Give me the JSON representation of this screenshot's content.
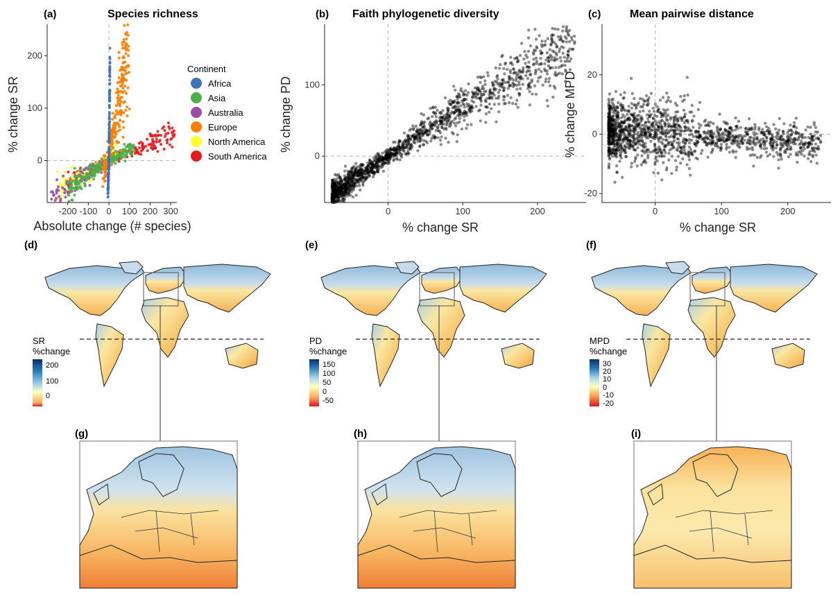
{
  "colors": {
    "Africa": "#3d75b8",
    "Asia": "#4daf4a",
    "Australia": "#984ea3",
    "Europe": "#ff7f00",
    "North America": "#ffff33",
    "South America": "#e41a1c",
    "points_dark": "#000000",
    "land_base": "#f7e9a6",
    "ocean": "#ffffff",
    "gridline": "#b5b5b5",
    "divergent_low": "#d7191c",
    "divergent_mid": "#ffffbf",
    "divergent_high": "#08306b"
  },
  "panels": {
    "a": {
      "letter": "(a)",
      "title": "Species richness"
    },
    "b": {
      "letter": "(b)",
      "title": "Faith phylogenetic diversity"
    },
    "c": {
      "letter": "(c)",
      "title": "Mean pairwise distance"
    },
    "d": {
      "letter": "(d)",
      "cbar_title_1": "SR",
      "cbar_title_2": "%change",
      "cbar_ticks": [
        "200",
        "100",
        "0"
      ]
    },
    "e": {
      "letter": "(e)",
      "cbar_title_1": "PD",
      "cbar_title_2": "%change",
      "cbar_ticks": [
        "150",
        "100",
        "50",
        "0",
        "-50"
      ]
    },
    "f": {
      "letter": "(f)",
      "cbar_title_1": "MPD",
      "cbar_title_2": "%change",
      "cbar_ticks": [
        "30",
        "20",
        "10",
        "0",
        "-10",
        "-20"
      ]
    },
    "g": {
      "letter": "(g)"
    },
    "h": {
      "letter": "(h)"
    },
    "i": {
      "letter": "(i)"
    }
  },
  "chart_data": [
    {
      "type": "scatter",
      "panel": "a",
      "title": "Species richness",
      "xlabel": "Absolute change (# species)",
      "ylabel": "% change SR",
      "xlim": [
        -300,
        330
      ],
      "ylim": [
        -80,
        260
      ],
      "xticks": [
        "-200",
        "-100",
        "0",
        "100",
        "200",
        "300"
      ],
      "yticks": [
        "0",
        "100",
        "200"
      ],
      "legend_title": "Continent",
      "legend_placement": "right",
      "series": [
        {
          "name": "Africa",
          "trend": {
            "x": [
              -5,
              0,
              5
            ],
            "y": [
              -70,
              0,
              190
            ]
          }
        },
        {
          "name": "Asia",
          "trend": {
            "x": [
              -200,
              0,
              120
            ],
            "y": [
              -60,
              0,
              25
            ]
          }
        },
        {
          "name": "Australia",
          "trend": {
            "x": [
              -280,
              0,
              30
            ],
            "y": [
              -75,
              0,
              10
            ]
          }
        },
        {
          "name": "Europe",
          "trend": {
            "x": [
              -30,
              0,
              100
            ],
            "y": [
              -20,
              0,
              230
            ]
          }
        },
        {
          "name": "North America",
          "trend": {
            "x": [
              -250,
              0,
              60
            ],
            "y": [
              -55,
              0,
              20
            ]
          }
        },
        {
          "name": "South America",
          "trend": {
            "x": [
              -200,
              0,
              320
            ],
            "y": [
              -45,
              0,
              55
            ]
          }
        }
      ]
    },
    {
      "type": "scatter",
      "panel": "b",
      "title": "Faith phylogenetic diversity",
      "xlabel": "% change SR",
      "ylabel": "% change PD",
      "xlim": [
        -85,
        265
      ],
      "ylim": [
        -65,
        185
      ],
      "xticks": [
        "0",
        "100",
        "200"
      ],
      "yticks": [
        "0",
        "100"
      ],
      "trend": {
        "x": [
          -75,
          0,
          100,
          250
        ],
        "y": [
          -55,
          0,
          70,
          155
        ]
      }
    },
    {
      "type": "scatter",
      "panel": "c",
      "title": "Mean pairwise distance",
      "xlabel": "% change SR",
      "ylabel": "% change MPD",
      "xlim": [
        -80,
        265
      ],
      "ylim": [
        -23,
        37
      ],
      "xticks": [
        "0",
        "100",
        "200"
      ],
      "yticks": [
        "20",
        "0",
        "-20"
      ],
      "trend": {
        "x": [
          -60,
          0,
          100,
          250
        ],
        "y": [
          1,
          0,
          -1,
          -3
        ]
      }
    }
  ]
}
